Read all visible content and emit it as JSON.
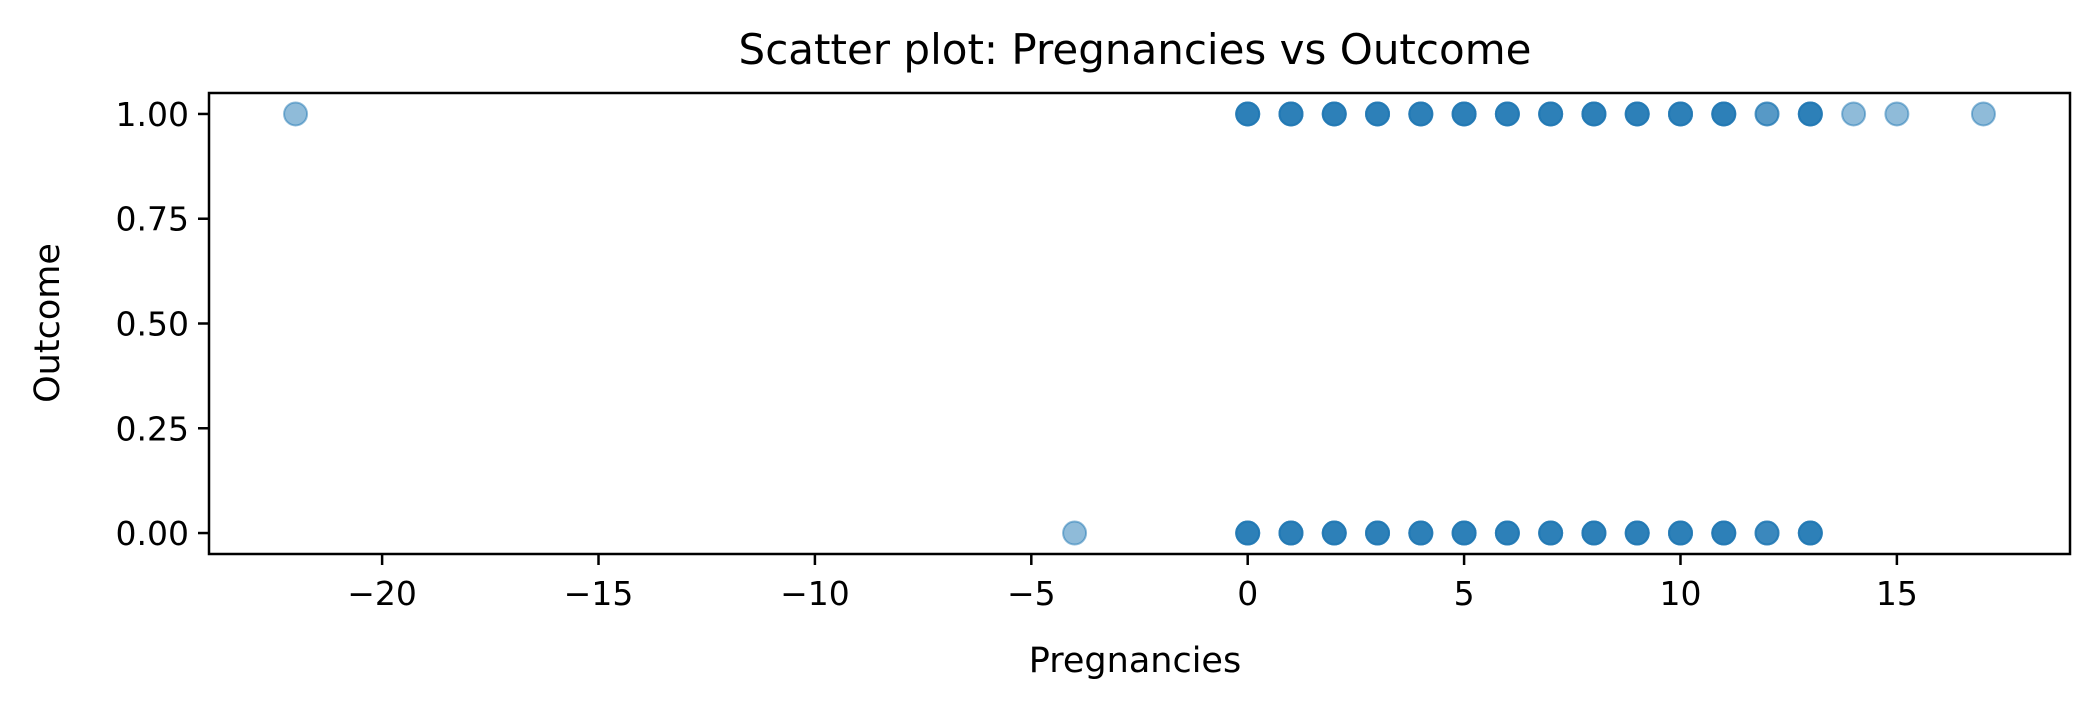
{
  "chart_data": {
    "type": "scatter",
    "title": "Scatter plot: Pregnancies vs Outcome",
    "xlabel": "Pregnancies",
    "ylabel": "Outcome",
    "xlim": [
      -24,
      19
    ],
    "ylim": [
      -0.05,
      1.05
    ],
    "xticks": [
      -20,
      -15,
      -10,
      -5,
      0,
      5,
      10,
      15
    ],
    "xtick_labels": [
      "−20",
      "−15",
      "−10",
      "−5",
      "0",
      "5",
      "10",
      "15"
    ],
    "yticks": [
      0.0,
      0.25,
      0.5,
      0.75,
      1.0
    ],
    "ytick_labels": [
      "0.00",
      "0.25",
      "0.50",
      "0.75",
      "1.00"
    ],
    "grid": false,
    "marker_color": "#1f77b4",
    "marker_alpha": 0.5,
    "points": [
      {
        "x": -22,
        "y": 1
      },
      {
        "x": 0,
        "y": 1
      },
      {
        "x": 1,
        "y": 1
      },
      {
        "x": 2,
        "y": 1
      },
      {
        "x": 3,
        "y": 1
      },
      {
        "x": 4,
        "y": 1
      },
      {
        "x": 5,
        "y": 1
      },
      {
        "x": 6,
        "y": 1
      },
      {
        "x": 7,
        "y": 1
      },
      {
        "x": 8,
        "y": 1
      },
      {
        "x": 9,
        "y": 1
      },
      {
        "x": 10,
        "y": 1
      },
      {
        "x": 11,
        "y": 1
      },
      {
        "x": 12,
        "y": 1
      },
      {
        "x": 13,
        "y": 1
      },
      {
        "x": 14,
        "y": 1
      },
      {
        "x": 15,
        "y": 1
      },
      {
        "x": 17,
        "y": 1
      },
      {
        "x": -4,
        "y": 0
      },
      {
        "x": 0,
        "y": 0
      },
      {
        "x": 1,
        "y": 0
      },
      {
        "x": 2,
        "y": 0
      },
      {
        "x": 3,
        "y": 0
      },
      {
        "x": 4,
        "y": 0
      },
      {
        "x": 5,
        "y": 0
      },
      {
        "x": 6,
        "y": 0
      },
      {
        "x": 7,
        "y": 0
      },
      {
        "x": 8,
        "y": 0
      },
      {
        "x": 9,
        "y": 0
      },
      {
        "x": 10,
        "y": 0
      },
      {
        "x": 11,
        "y": 0
      },
      {
        "x": 12,
        "y": 0
      },
      {
        "x": 13,
        "y": 0
      }
    ],
    "point_counts": [
      1,
      4,
      4,
      4,
      4,
      4,
      4,
      4,
      4,
      4,
      4,
      4,
      4,
      2,
      4,
      1,
      1,
      1,
      1,
      4,
      4,
      4,
      4,
      4,
      4,
      4,
      4,
      4,
      4,
      4,
      4,
      3,
      4
    ]
  }
}
